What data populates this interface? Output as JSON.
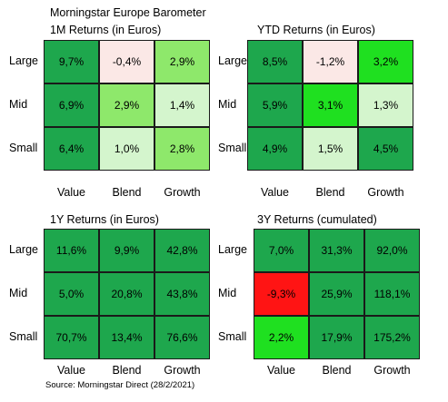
{
  "title": "Morningstar Europe Barometer",
  "source": "Source: Morningstar Direct (28/2/2021)",
  "colors": {
    "dark_green": "#16a34a",
    "mid_green": "#1fb04a",
    "light_green": "#99e86a",
    "pale_green": "#d4f7cc",
    "pale_pink": "#fbe9e7",
    "bright_green": "#24e01f",
    "red": "#ff1a1a"
  },
  "chart_data": [
    {
      "type": "heatmap",
      "title": "1M Returns (in Euros)",
      "rows": [
        "Large",
        "Mid",
        "Small"
      ],
      "columns": [
        "Value",
        "Blend",
        "Growth"
      ],
      "values": [
        [
          "9,7%",
          "-0,4%",
          "2,9%"
        ],
        [
          "6,9%",
          "2,9%",
          "1,4%"
        ],
        [
          "6,4%",
          "1,0%",
          "2,8%"
        ]
      ],
      "cell_colors": [
        [
          "#1ea74d",
          "#fbe8e6",
          "#8ee86b"
        ],
        [
          "#1ea74d",
          "#8ee86b",
          "#d4f5cd"
        ],
        [
          "#1ea74d",
          "#d4f5cd",
          "#8ee86b"
        ]
      ]
    },
    {
      "type": "heatmap",
      "title": "YTD Returns (in Euros)",
      "rows": [
        "Large",
        "Mid",
        "Small"
      ],
      "columns": [
        "Value",
        "Blend",
        "Growth"
      ],
      "values": [
        [
          "8,5%",
          "-1,2%",
          "3,2%"
        ],
        [
          "5,9%",
          "3,1%",
          "1,3%"
        ],
        [
          "4,9%",
          "1,5%",
          "4,5%"
        ]
      ],
      "cell_colors": [
        [
          "#1ea74d",
          "#fbe8e6",
          "#1fe020"
        ],
        [
          "#1ea74d",
          "#1fe020",
          "#d4f5cd"
        ],
        [
          "#1ea74d",
          "#d4f5cd",
          "#1ea74d"
        ]
      ]
    },
    {
      "type": "heatmap",
      "title": "1Y Returns (in Euros)",
      "rows": [
        "Large",
        "Mid",
        "Small"
      ],
      "columns": [
        "Value",
        "Blend",
        "Growth"
      ],
      "values": [
        [
          "11,6%",
          "9,9%",
          "42,8%"
        ],
        [
          "5,0%",
          "20,8%",
          "43,8%"
        ],
        [
          "70,7%",
          "13,4%",
          "76,6%"
        ]
      ],
      "cell_colors": [
        [
          "#1ea74d",
          "#1ea74d",
          "#1ea74d"
        ],
        [
          "#1ea74d",
          "#1ea74d",
          "#1ea74d"
        ],
        [
          "#1ea74d",
          "#1ea74d",
          "#1ea74d"
        ]
      ]
    },
    {
      "type": "heatmap",
      "title": "3Y Returns (cumulated)",
      "rows": [
        "Large",
        "Mid",
        "Small"
      ],
      "columns": [
        "Value",
        "Blend",
        "Growth"
      ],
      "values": [
        [
          "7,0%",
          "31,3%",
          "92,0%"
        ],
        [
          "-9,3%",
          "25,9%",
          "118,1%"
        ],
        [
          "2,2%",
          "17,9%",
          "175,2%"
        ]
      ],
      "cell_colors": [
        [
          "#1ea74d",
          "#1ea74d",
          "#1ea74d"
        ],
        [
          "#ff1414",
          "#1ea74d",
          "#1ea74d"
        ],
        [
          "#1fe020",
          "#1ea74d",
          "#1ea74d"
        ]
      ]
    }
  ]
}
